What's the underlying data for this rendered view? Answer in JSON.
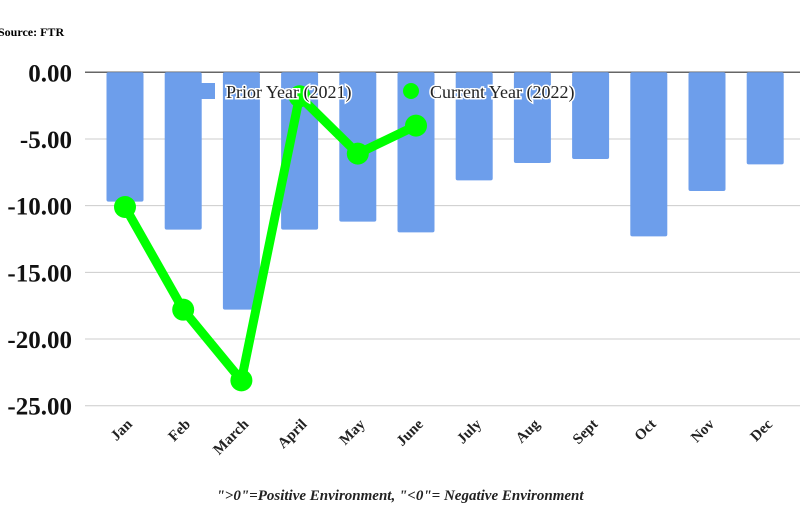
{
  "chart_data": {
    "type": "bar",
    "source": "Source: FTR",
    "footnote": "\">0\"=Positive Environment, \"<0\"= Negative Environment",
    "categories": [
      "Jan",
      "Feb",
      "March",
      "April",
      "May",
      "June",
      "July",
      "Aug",
      "Sept",
      "Oct",
      "Nov",
      "Dec"
    ],
    "series": [
      {
        "name": "Prior Year (2021)",
        "type": "bar",
        "color": "#6d9eeb",
        "values": [
          -9.7,
          -11.8,
          -17.8,
          -11.8,
          -11.2,
          -12.0,
          -8.1,
          -6.8,
          -6.5,
          -12.3,
          -8.9,
          -6.9
        ]
      },
      {
        "name": "Current Year (2022)",
        "type": "line",
        "color": "#00ff00",
        "values": [
          -10.1,
          -17.8,
          -23.1,
          -1.8,
          -6.1,
          -4.0,
          null,
          null,
          null,
          null,
          null,
          null
        ]
      }
    ],
    "yticks": [
      "0.00",
      "-5.00",
      "-10.00",
      "-15.00",
      "-20.00",
      "-25.00"
    ],
    "ylim": [
      -25,
      0
    ],
    "grid": true,
    "legend": "top-center"
  }
}
